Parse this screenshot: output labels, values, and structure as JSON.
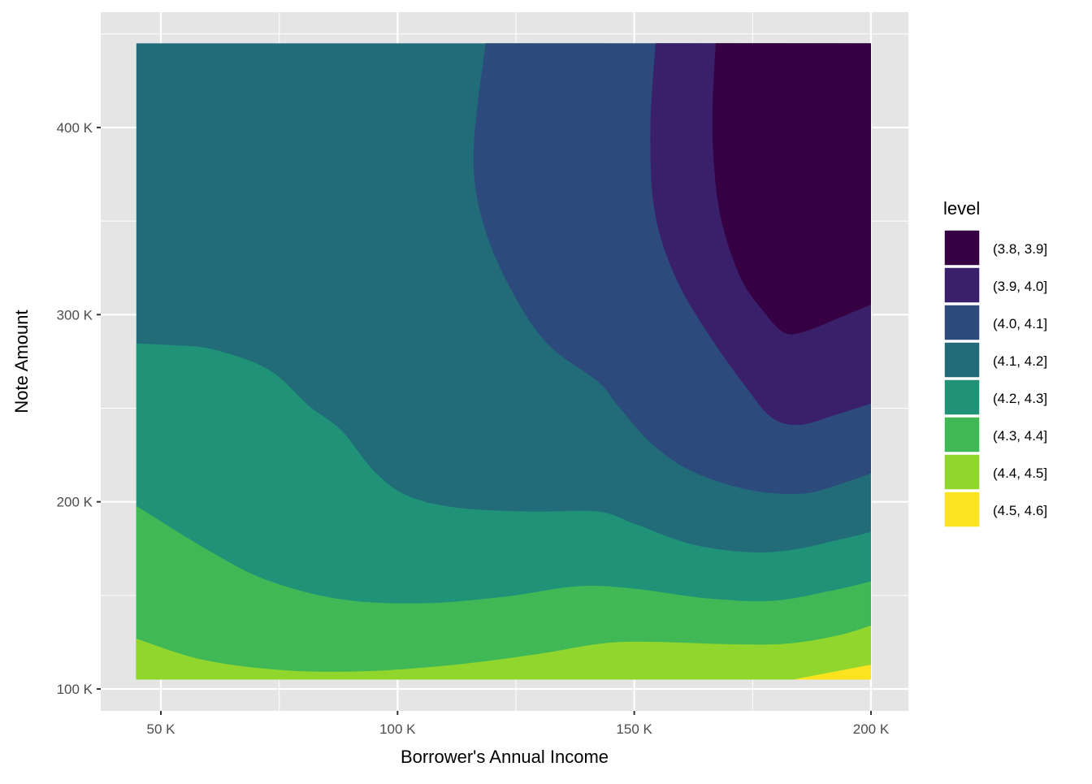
{
  "chart_data": {
    "type": "contour-filled",
    "title": "",
    "xlabel": "Borrower's Annual Income",
    "ylabel": "Note Amount",
    "xlim": [
      37.3,
      207.9
    ],
    "ylim": [
      88.3,
      461.6
    ],
    "data_extent": {
      "x": [
        44.8,
        200
      ],
      "y": [
        105,
        445
      ]
    },
    "x_ticks": [
      {
        "value": 50,
        "label": "50 K"
      },
      {
        "value": 100,
        "label": "100 K"
      },
      {
        "value": 150,
        "label": "150 K"
      },
      {
        "value": 200,
        "label": "200 K"
      }
    ],
    "x_minor": [
      75,
      125,
      175
    ],
    "y_ticks": [
      {
        "value": 100,
        "label": "100 K"
      },
      {
        "value": 200,
        "label": "200 K"
      },
      {
        "value": 300,
        "label": "300 K"
      },
      {
        "value": 400,
        "label": "400 K"
      }
    ],
    "y_minor": [
      150,
      250,
      350,
      450
    ],
    "grid": true,
    "legend": {
      "title": "level",
      "placement": "right",
      "entries": [
        {
          "label": "(3.8, 3.9]",
          "color": "#360143"
        },
        {
          "label": "(3.9, 4.0]",
          "color": "#3a1f6b"
        },
        {
          "label": "(4.0, 4.1]",
          "color": "#2c4a7c"
        },
        {
          "label": "(4.1, 4.2]",
          "color": "#226c79"
        },
        {
          "label": "(4.2, 4.3]",
          "color": "#1f9278"
        },
        {
          "label": "(4.3, 4.4]",
          "color": "#40b856"
        },
        {
          "label": "(4.4, 4.5]",
          "color": "#91d62d"
        },
        {
          "label": "(4.5, 4.6]",
          "color": "#fbe41f"
        }
      ]
    },
    "base_level": "(4.1, 4.2]",
    "regions": [
      {
        "level": "(4.0, 4.1]",
        "curve": [
          [
            118.6,
            445.1
          ],
          [
            116.1,
            390.0
          ],
          [
            117.4,
            355.3
          ],
          [
            122.5,
            320.6
          ],
          [
            131.1,
            285.9
          ],
          [
            142.3,
            264.2
          ],
          [
            146.6,
            251.2
          ],
          [
            153.4,
            231.7
          ],
          [
            162.0,
            216.5
          ],
          [
            174.0,
            206.5
          ],
          [
            185.2,
            204.3
          ],
          [
            193.0,
            209.1
          ],
          [
            200,
            215.2
          ]
        ],
        "corners": [
          [
            200,
            445
          ]
        ]
      },
      {
        "level": "(3.9, 4.0]",
        "curve": [
          [
            154.5,
            445.1
          ],
          [
            153.4,
            398.7
          ],
          [
            154.3,
            355.3
          ],
          [
            158.6,
            320.6
          ],
          [
            165.5,
            290.2
          ],
          [
            174.0,
            259.9
          ],
          [
            179.2,
            244.7
          ],
          [
            185.2,
            241.2
          ],
          [
            193.0,
            246.9
          ],
          [
            200,
            252.5
          ]
        ],
        "corners": [
          [
            200,
            445
          ]
        ]
      },
      {
        "level": "(3.8, 3.9]",
        "curve": [
          [
            167.2,
            445.1
          ],
          [
            166.5,
            398.7
          ],
          [
            168.0,
            355.3
          ],
          [
            172.3,
            320.6
          ],
          [
            177.5,
            301.1
          ],
          [
            181.8,
            290.2
          ],
          [
            186.1,
            291.1
          ],
          [
            193.0,
            298.0
          ],
          [
            200,
            305.4
          ]
        ],
        "corners": [
          [
            200,
            445
          ]
        ]
      },
      {
        "level": "(4.2, 4.3]",
        "curve": [
          [
            44.8,
            284.6
          ],
          [
            52.1,
            283.7
          ],
          [
            60.7,
            281.6
          ],
          [
            72.7,
            270.7
          ],
          [
            81.3,
            251.2
          ],
          [
            88.1,
            238.2
          ],
          [
            95.0,
            216.5
          ],
          [
            101.9,
            203.5
          ],
          [
            112.2,
            197.0
          ],
          [
            127.7,
            194.8
          ],
          [
            142.3,
            194.8
          ],
          [
            150.0,
            188.3
          ],
          [
            162.0,
            177.4
          ],
          [
            174.0,
            173.1
          ],
          [
            183.5,
            174.4
          ],
          [
            193.0,
            179.6
          ],
          [
            200,
            183.9
          ]
        ],
        "corners": [
          [
            200,
            105
          ],
          [
            44.8,
            105
          ]
        ]
      },
      {
        "level": "(4.3, 4.4]",
        "curve": [
          [
            44.8,
            197.8
          ],
          [
            60.7,
            173.1
          ],
          [
            72.7,
            157.9
          ],
          [
            88.1,
            147.9
          ],
          [
            105.3,
            145.8
          ],
          [
            122.5,
            149.3
          ],
          [
            138.0,
            154.9
          ],
          [
            150.0,
            153.6
          ],
          [
            165.5,
            148.4
          ],
          [
            179.2,
            147.1
          ],
          [
            191.2,
            152.3
          ],
          [
            200,
            157.5
          ]
        ],
        "corners": [
          [
            200,
            105
          ],
          [
            44.8,
            105
          ]
        ]
      },
      {
        "level": "(4.4, 4.5]",
        "curve": [
          [
            44.8,
            126.9
          ],
          [
            58.9,
            115.6
          ],
          [
            76.1,
            110.0
          ],
          [
            93.3,
            109.5
          ],
          [
            112.2,
            113.0
          ],
          [
            129.4,
            118.6
          ],
          [
            143.1,
            124.3
          ],
          [
            153.4,
            125.2
          ],
          [
            170.6,
            123.9
          ],
          [
            182.6,
            124.3
          ],
          [
            193.0,
            128.6
          ],
          [
            200,
            133.9
          ]
        ],
        "corners": [
          [
            200,
            105
          ],
          [
            44.8,
            105
          ]
        ]
      },
      {
        "level": "(4.5, 4.6]",
        "curve": [
          [
            183.5,
            105.0
          ],
          [
            200,
            113.0
          ]
        ],
        "corners": [
          [
            200,
            105
          ]
        ]
      }
    ]
  }
}
